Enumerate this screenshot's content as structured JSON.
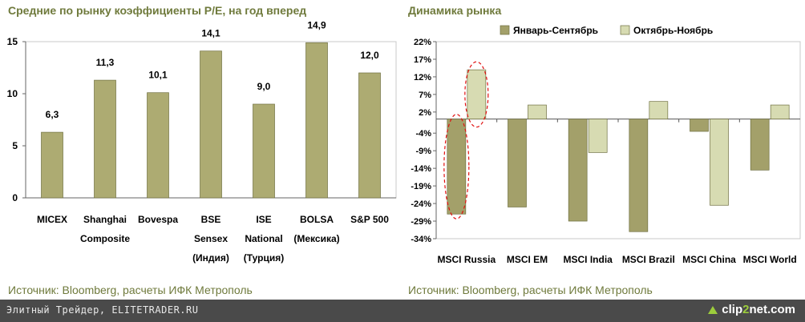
{
  "chart_data": [
    {
      "type": "bar",
      "title": "Средние по рынку коэффициенты P/E, на год вперед",
      "categories": [
        [
          "MICEX"
        ],
        [
          "Shanghai",
          "Composite"
        ],
        [
          "Bovespa"
        ],
        [
          "BSE",
          "Sensex",
          "(Индия)"
        ],
        [
          "ISE",
          "National",
          "(Турция)"
        ],
        [
          "BOLSA",
          "(Мексика)"
        ],
        [
          "S&P 500"
        ]
      ],
      "values": [
        6.3,
        11.3,
        10.1,
        14.1,
        9.0,
        14.9,
        12.0
      ],
      "value_labels": [
        "6,3",
        "11,3",
        "10,1",
        "14,1",
        "9,0",
        "14,9",
        "12,0"
      ],
      "ylim": [
        0,
        15
      ],
      "yticks": [
        0,
        5,
        10,
        15
      ],
      "ytick_labels": [
        "0",
        "5",
        "10",
        "15"
      ],
      "source": "Источник: Bloomberg, расчеты ИФК Метрополь",
      "colors": {
        "bar": "#adab72",
        "bar_stroke": "#6f7040"
      }
    },
    {
      "type": "bar",
      "title": "Динамика рынка",
      "categories": [
        "MSCI Russia",
        "MSCI EM",
        "MSCI India",
        "MSCI Brazil",
        "MSCI China",
        "MSCI World"
      ],
      "series": [
        {
          "name": "Январь-Сентябрь",
          "values": [
            -27,
            -25,
            -29,
            -32,
            -3.5,
            -14.5
          ],
          "color": "#a3a06a"
        },
        {
          "name": "Октябрь-Ноябрь",
          "values": [
            14,
            4,
            -9.5,
            5,
            -24.5,
            4
          ],
          "color": "#d7dbb2"
        }
      ],
      "ylim": [
        -34,
        22
      ],
      "yticks": [
        22,
        17,
        12,
        7,
        2,
        -4,
        -9,
        -14,
        -19,
        -24,
        -29,
        -34
      ],
      "ytick_labels": [
        "22%",
        "17%",
        "12%",
        "7%",
        "2%",
        "-4%",
        "-9%",
        "-14%",
        "-19%",
        "-24%",
        "-29%",
        "-34%"
      ],
      "source": "Источник: Bloomberg, расчеты ИФК Метрополь",
      "annotation_color": "#e01010"
    }
  ],
  "footer": {
    "site_text": "Элитный Трейдер, ELITETRADER.RU",
    "brand_pre": "clip",
    "brand_two": "2",
    "brand_post": "net.com"
  }
}
